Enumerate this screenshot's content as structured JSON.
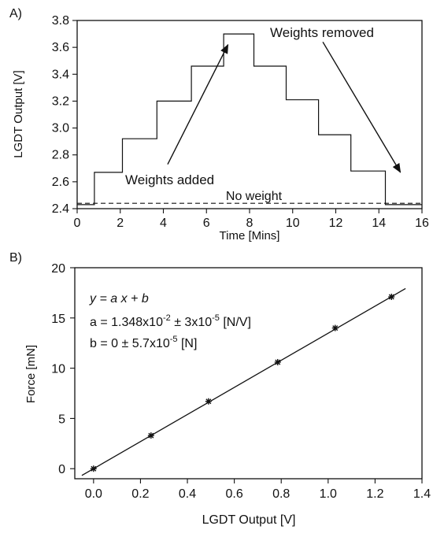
{
  "chart_data": [
    {
      "panel_label": "A)",
      "type": "line",
      "xlabel": "Time [Mins]",
      "ylabel": "LGDT Output [V]",
      "xlim": [
        0,
        16
      ],
      "ylim": [
        2.4,
        3.8
      ],
      "xticks": [
        "0",
        "2",
        "4",
        "6",
        "8",
        "10",
        "12",
        "14",
        "16"
      ],
      "yticks": [
        "2.4",
        "2.6",
        "2.8",
        "3.0",
        "3.2",
        "3.4",
        "3.6",
        "3.8"
      ],
      "series": [
        {
          "x": [
            0,
            0.8,
            0.8,
            2.1,
            2.1,
            3.7,
            3.7,
            5.3,
            5.3,
            6.8,
            6.8,
            8.2,
            8.2,
            9.7,
            9.7,
            11.2,
            11.2,
            12.7,
            12.7,
            14.3,
            14.3,
            16
          ],
          "y": [
            2.43,
            2.43,
            2.67,
            2.67,
            2.92,
            2.92,
            3.2,
            3.2,
            3.46,
            3.46,
            3.7,
            3.7,
            3.46,
            3.46,
            3.21,
            3.21,
            2.95,
            2.95,
            2.68,
            2.68,
            2.43,
            2.43
          ]
        }
      ],
      "baseline": {
        "label": "No weight",
        "y": 2.44
      },
      "annotations": [
        {
          "text": "Weights added",
          "arrow_from": [
            4.2,
            2.73
          ],
          "arrow_to": [
            7.0,
            3.62
          ]
        },
        {
          "text": "Weights removed",
          "arrow_from": [
            11.4,
            3.64
          ],
          "arrow_to": [
            15.0,
            2.67
          ]
        }
      ],
      "grid": false
    },
    {
      "panel_label": "B)",
      "type": "scatter",
      "xlabel": "LGDT Output [V]",
      "ylabel": "Force [mN]",
      "xlim": [
        -0.08,
        1.4
      ],
      "ylim": [
        -1,
        20
      ],
      "xticks": [
        "0.0",
        "0.2",
        "0.4",
        "0.6",
        "0.8",
        "1.0",
        "1.2",
        "1.4"
      ],
      "yticks": [
        "0",
        "5",
        "10",
        "15",
        "20"
      ],
      "points": {
        "x": [
          0.0,
          0.245,
          0.49,
          0.785,
          1.03,
          1.27
        ],
        "y": [
          0.0,
          3.3,
          6.7,
          10.6,
          14.0,
          17.1
        ]
      },
      "fit": {
        "slope": 13.48,
        "intercept": 0,
        "x_range": [
          -0.05,
          1.33
        ]
      },
      "equation": {
        "line1": "y = a x + b",
        "line2_prefix": "a = 1.348x10",
        "line2_exp1": "-2",
        "line2_mid": " ± 3x10",
        "line2_exp2": "-5",
        "line2_suffix": " [N/V]",
        "line3_prefix": "b = 0 ± 5.7x10",
        "line3_exp": "-5",
        "line3_suffix": " [N]"
      },
      "grid": false
    }
  ]
}
